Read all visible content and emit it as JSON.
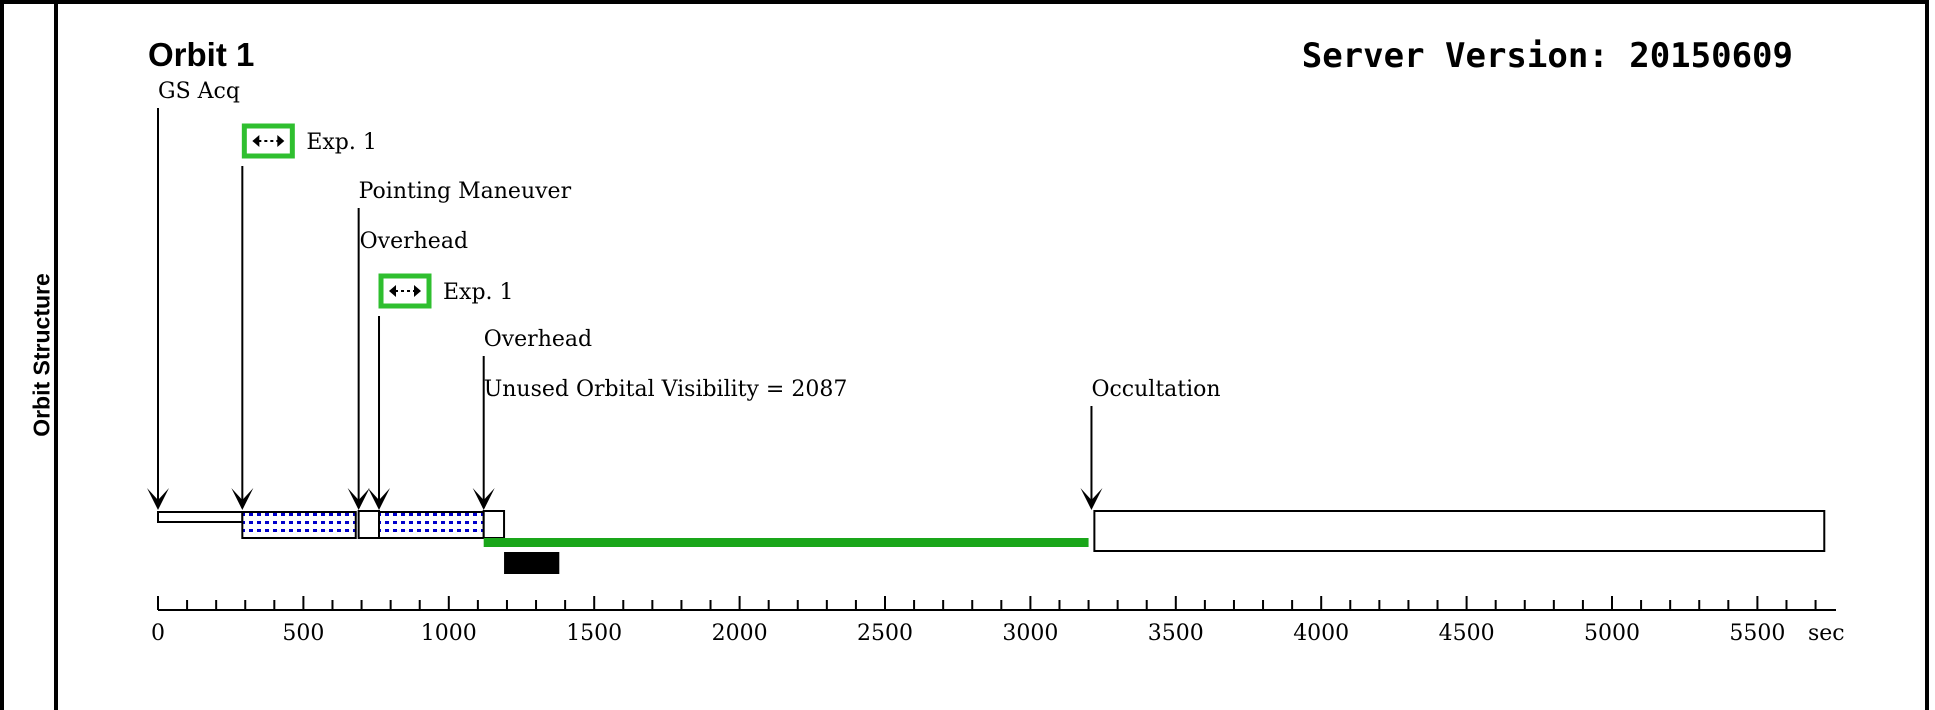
{
  "side_label": "Orbit Structure",
  "orbit_title": "Orbit 1",
  "server_version": "Server Version: 20150609",
  "colors": {
    "visibility_bar": "#1aa61a",
    "exposure_pattern": "#0000cc",
    "exposure_icon_border": "#2fbf2f"
  },
  "events": [
    {
      "label": "GS Acq",
      "time": 0
    },
    {
      "label": "Exp. 1",
      "time": 290,
      "icon": "expand-arrows-icon"
    },
    {
      "label": "Pointing Maneuver",
      "time": 690
    },
    {
      "label": "Overhead",
      "time": 690
    },
    {
      "label": "Exp. 1",
      "time": 760,
      "icon": "expand-arrows-icon"
    },
    {
      "label": "Overhead",
      "time": 1120
    },
    {
      "label": "Unused Orbital Visibility = 2087",
      "time": 1120
    },
    {
      "label": "Occultation",
      "time": 3210
    }
  ],
  "chart_data": {
    "type": "timeline",
    "xlabel": "sec",
    "xlim": [
      0,
      5750
    ],
    "major_ticks": [
      0,
      500,
      1000,
      1500,
      2000,
      2500,
      3000,
      3500,
      4000,
      4500,
      5000,
      5500
    ],
    "tick_labels": [
      "0",
      "500",
      "1000",
      "1500",
      "2000",
      "2500",
      "3000",
      "3500",
      "4000",
      "4500",
      "5000",
      "5500"
    ],
    "minor_tick_step": 100,
    "segments": [
      {
        "name": "GS Acq",
        "start": 0,
        "end": 290,
        "style": "empty"
      },
      {
        "name": "Exp. 1",
        "start": 290,
        "end": 680,
        "style": "exposure"
      },
      {
        "name": "Overhead",
        "start": 690,
        "end": 760,
        "style": "empty"
      },
      {
        "name": "Exp. 1",
        "start": 760,
        "end": 1120,
        "style": "exposure"
      },
      {
        "name": "Overhead",
        "start": 1120,
        "end": 1190,
        "style": "empty"
      },
      {
        "name": "Occultation",
        "start": 3220,
        "end": 5730,
        "style": "empty"
      }
    ],
    "visibility_bar": {
      "start": 1120,
      "end": 3200
    },
    "black_block": {
      "start": 1190,
      "end": 1380
    }
  }
}
